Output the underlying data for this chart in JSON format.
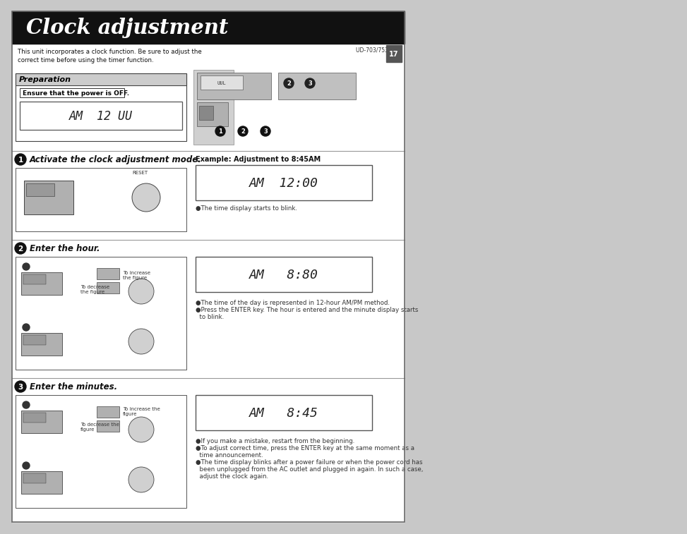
{
  "page_bg": "#c8c8c8",
  "content_bg": "#ffffff",
  "header_bg": "#111111",
  "header_text": "Clock adjustment",
  "header_text_color": "#ffffff",
  "intro_text": "This unit incorporates a clock function. Be sure to adjust the\ncorrect time before using the timer function.",
  "model_text": "UD-703/753 (En)",
  "prep_title": "Preparation",
  "prep_instruction": "Ensure that the power is OFF.",
  "display1_text": "AM  ¾12:UU",
  "display2_text": "AM  ¾2:00",
  "display3_text": "AM  ¾8:80",
  "display4_text": "AM   8:¾45",
  "step1_label": "1",
  "step2_label": "2",
  "step3_label": "3",
  "step1_title": "Activate the clock adjustment mode.",
  "step2_title": "Enter the hour.",
  "step3_title": "Enter the minutes.",
  "example_label": "Example: Adjustment to 8:45AM",
  "note1": "●The time display starts to blink.",
  "note2_line1": "●The time of the day is represented in 12-hour AM/PM method.",
  "note2_line2": "●Press the ENTER key. The hour is entered and the minute display starts",
  "note2_line3": "  to blink.",
  "note3_line1": "●If you make a mistake, restart from the beginning.",
  "note3_line2": "●To adjust correct time, press the ENTER key at the same moment as a",
  "note3_line3": "  time announcement.",
  "note3_line4": "●The time display blinks after a power failure or when the power cord has",
  "note3_line5": "  been unplugged from the AC outlet and plugged in again. In such a case,",
  "note3_line6": "  adjust the clock again.",
  "step2_note_up": "To increase\nthe figure",
  "step2_note_down": "To decrease\nthe figure",
  "step3_note_up": "To increase the\nfigure",
  "step3_note_down": "To decrease the\nfigure",
  "reset_label": "RESET"
}
